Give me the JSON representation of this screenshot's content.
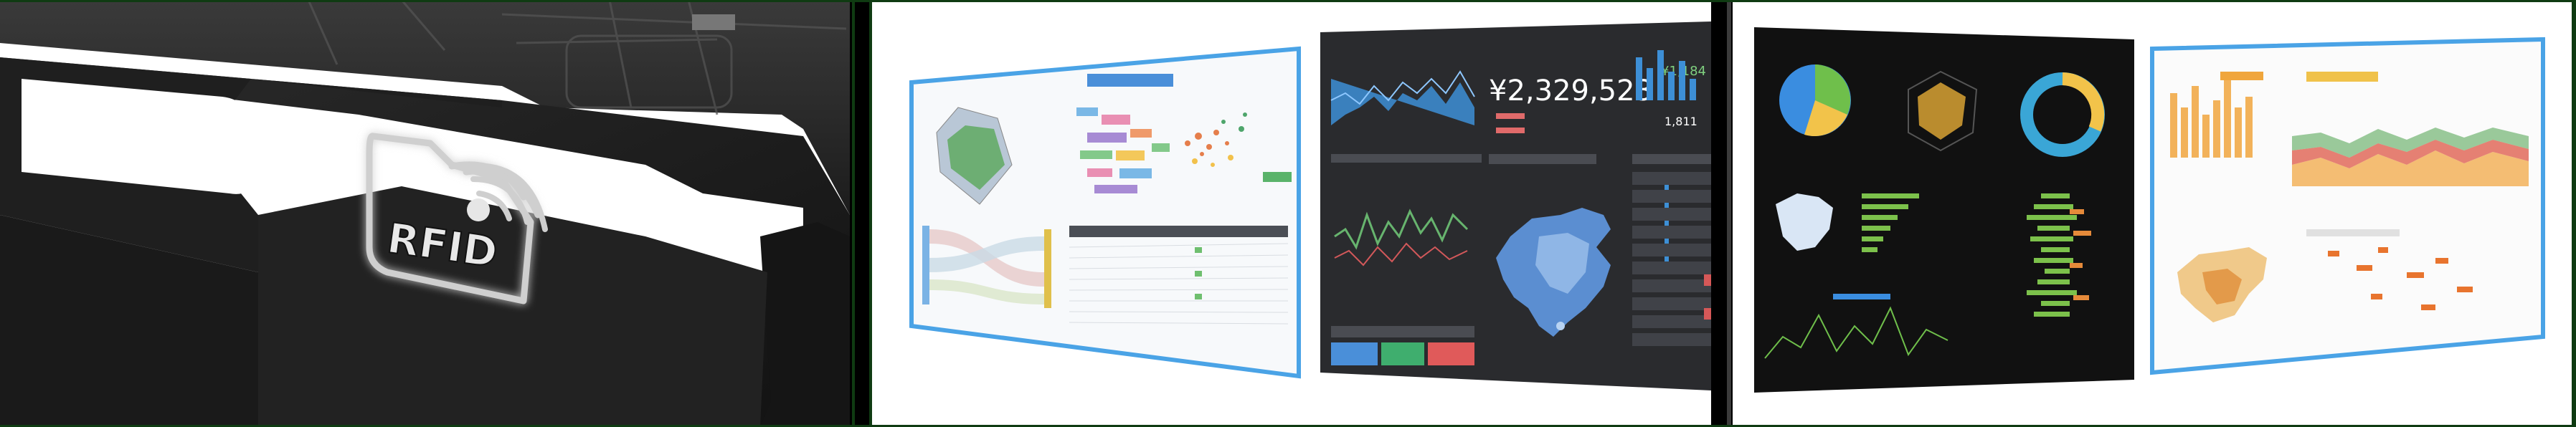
{
  "left_photo": {
    "rfid_label": "RFID"
  },
  "dashboards": {
    "revenue_value": "¥2,329,523",
    "side_value_1": "¥1,184",
    "side_value_2": "1,811"
  },
  "colors": {
    "accent_blue": "#3c8fd8",
    "frame_border": "#0f3b12",
    "dark_dash_bg": "#2a2b2e",
    "black_dash_bg": "#111111"
  }
}
